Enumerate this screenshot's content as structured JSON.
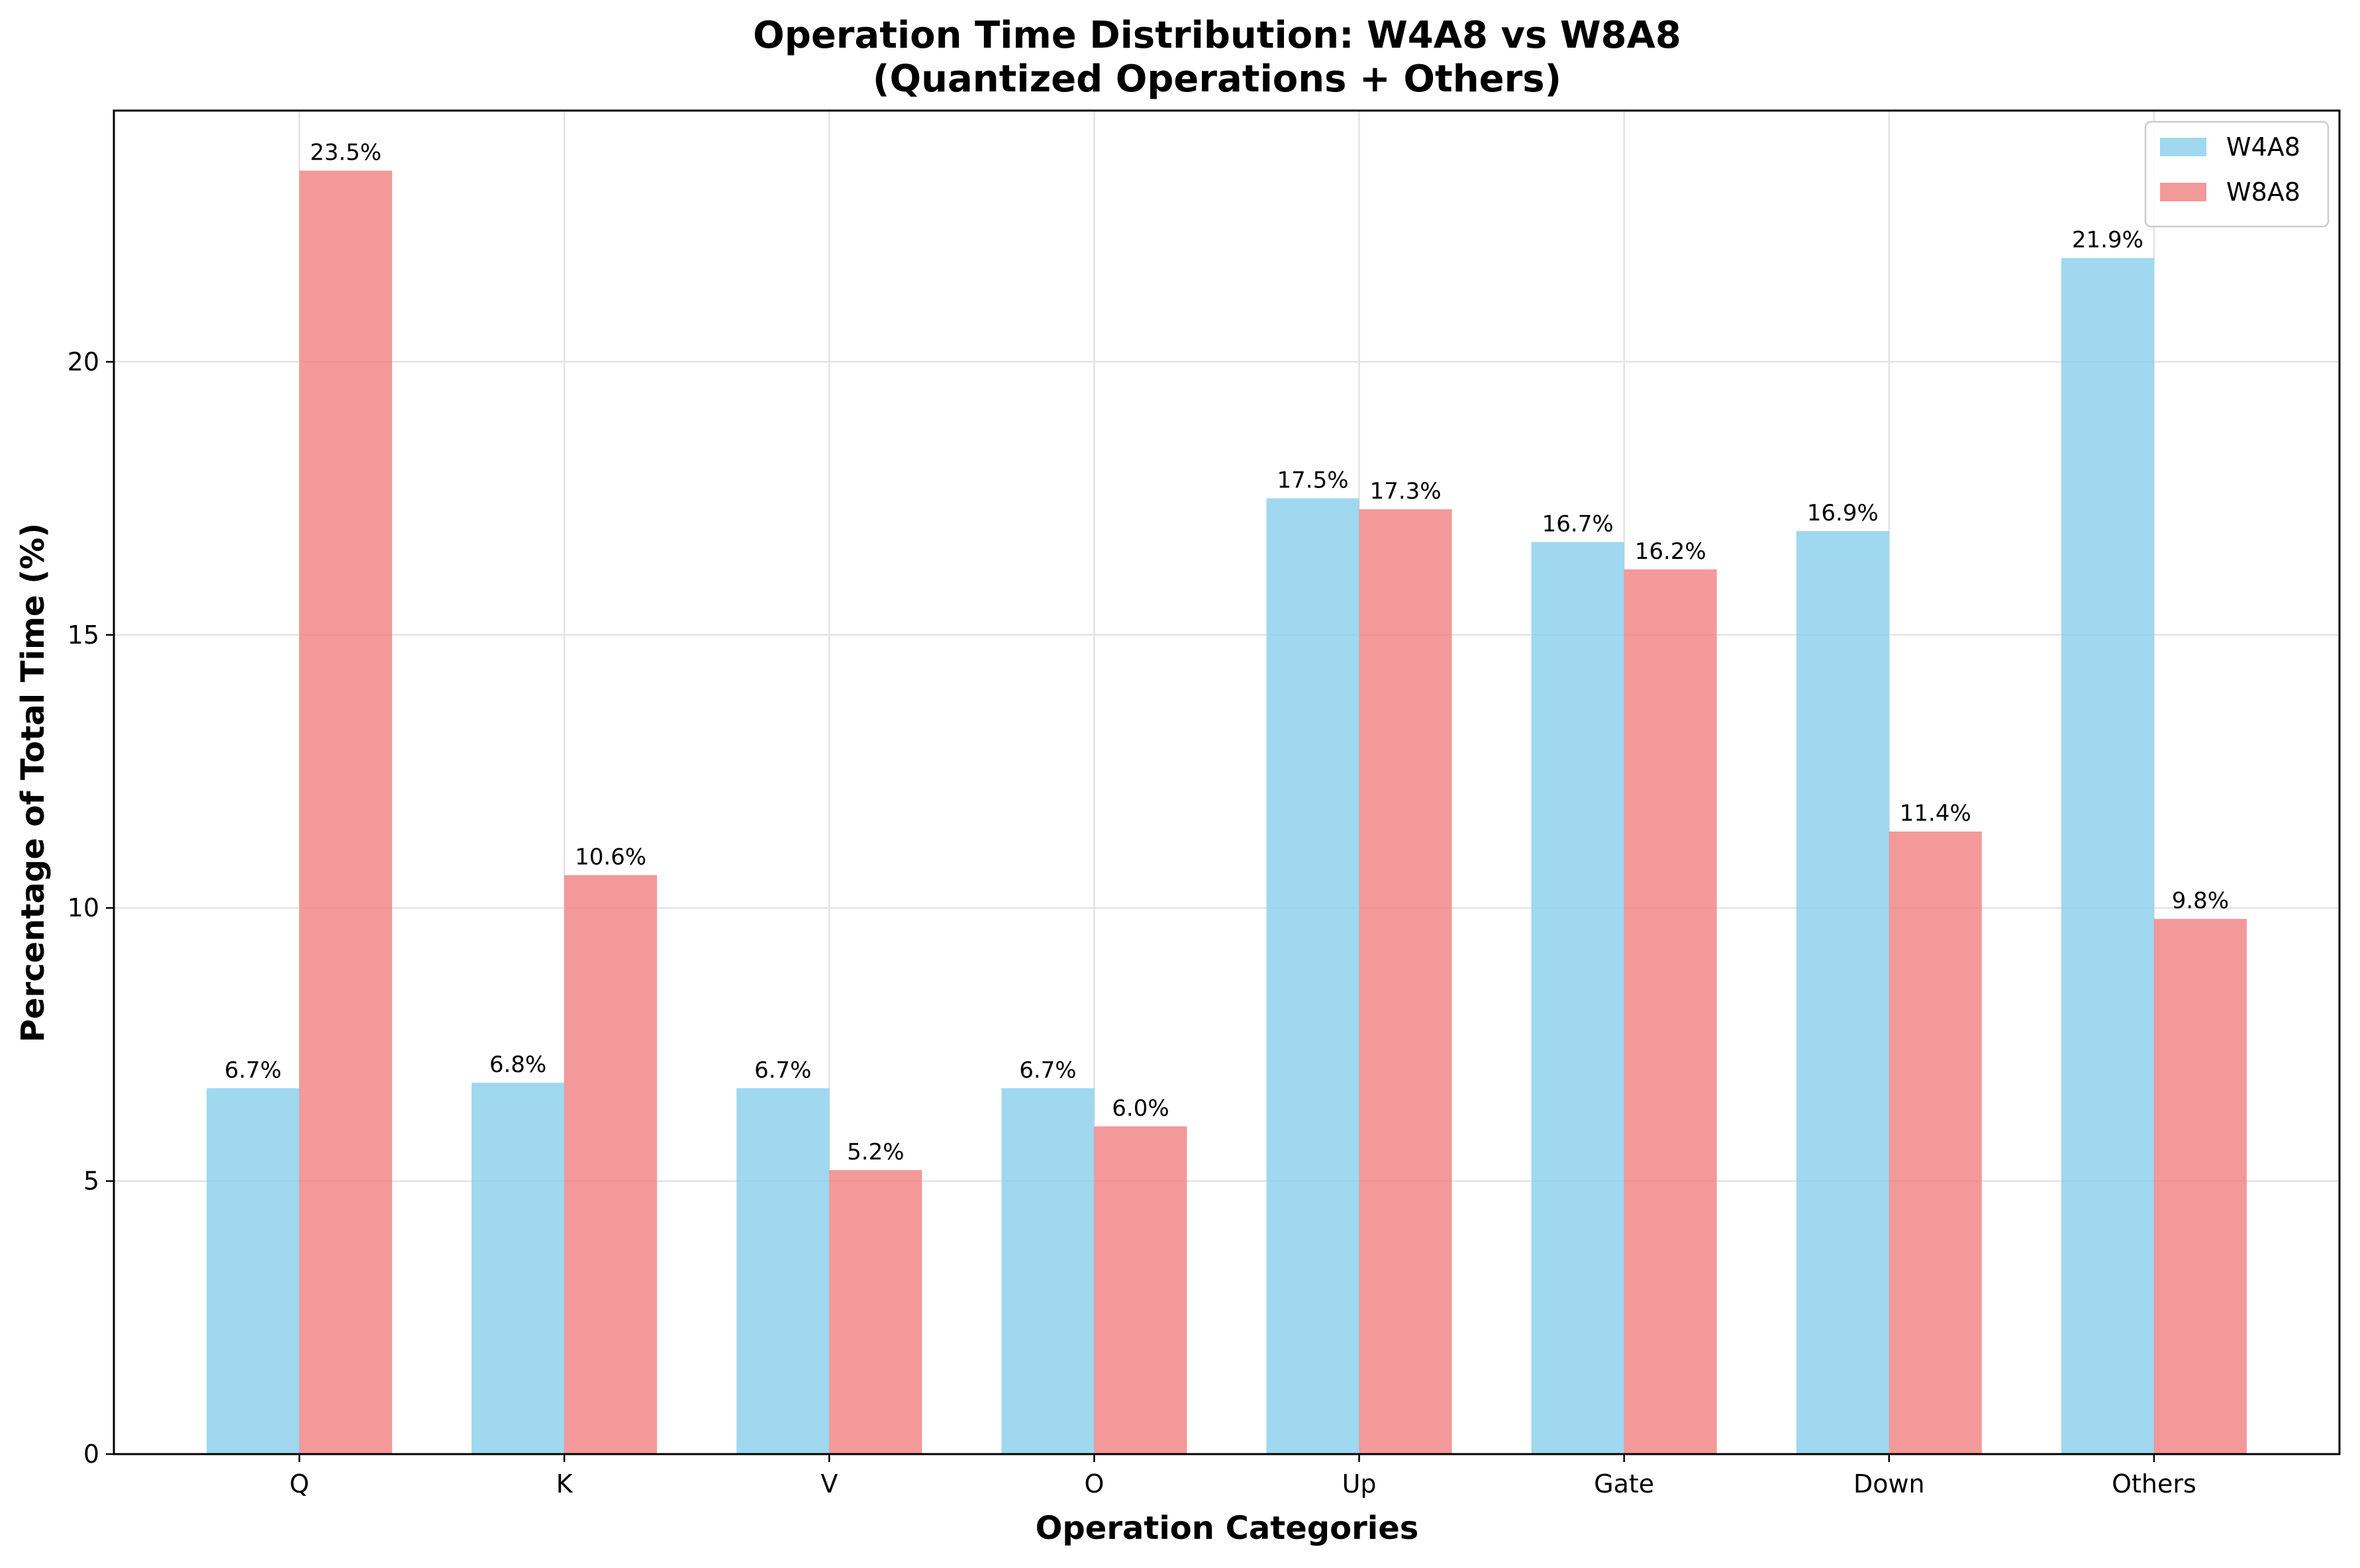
{
  "chart_data": {
    "type": "bar",
    "title": "Operation Time Distribution: W4A8 vs W8A8",
    "subtitle": "(Quantized Operations + Others)",
    "xlabel": "Operation Categories",
    "ylabel": "Percentage of Total Time (%)",
    "categories": [
      "Q",
      "K",
      "V",
      "O",
      "Up",
      "Gate",
      "Down",
      "Others"
    ],
    "series": [
      {
        "name": "W4A8",
        "color": "#87ceeb",
        "values": [
          6.7,
          6.8,
          6.7,
          6.7,
          17.5,
          16.7,
          16.9,
          21.9
        ],
        "labels": [
          "6.7%",
          "6.8%",
          "6.7%",
          "6.7%",
          "17.5%",
          "16.7%",
          "16.9%",
          "21.9%"
        ]
      },
      {
        "name": "W8A8",
        "color": "#f08080",
        "values": [
          23.5,
          10.6,
          5.2,
          6.0,
          17.3,
          16.2,
          11.4,
          9.8
        ],
        "labels": [
          "23.5%",
          "10.6%",
          "5.2%",
          "6.0%",
          "17.3%",
          "16.2%",
          "11.4%",
          "9.8%"
        ]
      }
    ],
    "ylim": [
      0,
      24.6
    ],
    "yticks": [
      0,
      5,
      10,
      15,
      20
    ],
    "grid": true,
    "legend_position": "top-right"
  }
}
